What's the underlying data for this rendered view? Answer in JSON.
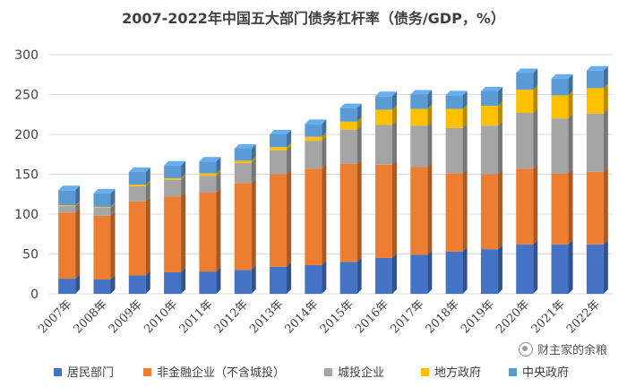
{
  "chart_data": {
    "type": "bar",
    "stacked": true,
    "title": "2007-2022年中国五大部门债务杠杆率（债务/GDP，%）",
    "xlabel": "",
    "ylabel": "",
    "ylim": [
      0,
      300
    ],
    "yticks": [
      0,
      50,
      100,
      150,
      200,
      250,
      300
    ],
    "grid": true,
    "legend_position": "bottom",
    "categories": [
      "2007年",
      "2008年",
      "2009年",
      "2010年",
      "2011年",
      "2012年",
      "2013年",
      "2014年",
      "2015年",
      "2016年",
      "2017年",
      "2018年",
      "2019年",
      "2020年",
      "2021年",
      "2022年"
    ],
    "series": [
      {
        "name": "居民部门",
        "color": "#4472C4",
        "values": [
          19,
          18,
          23,
          27,
          28,
          30,
          34,
          36,
          40,
          45,
          49,
          53,
          56,
          62,
          62,
          62
        ]
      },
      {
        "name": "非金融企业（不含城投）",
        "color": "#ED7D31",
        "values": [
          83,
          80,
          93,
          95,
          99,
          109,
          116,
          121,
          123,
          117,
          110,
          98,
          94,
          95,
          89,
          91
        ]
      },
      {
        "name": "城投企业",
        "color": "#A5A5A5",
        "values": [
          8,
          10,
          19,
          21,
          21,
          25,
          30,
          35,
          43,
          50,
          52,
          57,
          61,
          70,
          69,
          73
        ]
      },
      {
        "name": "地方政府",
        "color": "#FFC000",
        "values": [
          1,
          1,
          2,
          2,
          3,
          3,
          4,
          5,
          10,
          19,
          21,
          24,
          25,
          29,
          29,
          32
        ]
      },
      {
        "name": "中央政府",
        "color": "#5B9BD5",
        "values": [
          19,
          17,
          16,
          16,
          15,
          15,
          16,
          16,
          17,
          17,
          18,
          17,
          18,
          21,
          21,
          22
        ]
      }
    ]
  },
  "watermark": {
    "text": "财主家的余粮",
    "icon": "wechat-icon"
  }
}
